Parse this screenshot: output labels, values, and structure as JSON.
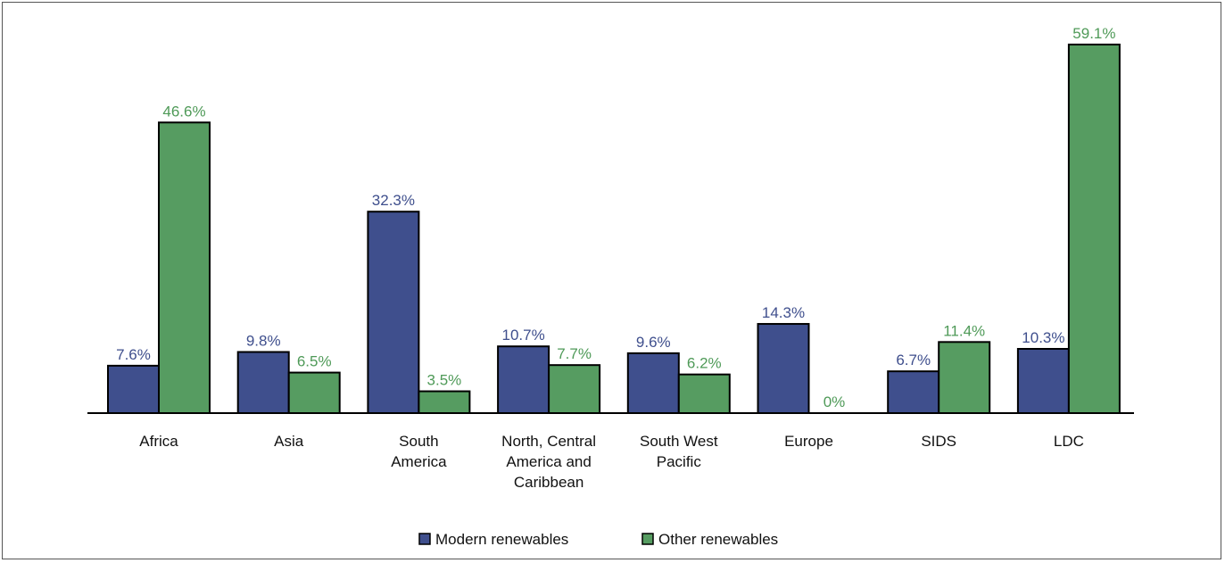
{
  "colors": {
    "modern": "#3f4f8d",
    "other": "#569c61",
    "modern_text": "#3f4f8d",
    "other_text": "#4f9a58",
    "axis": "#000000"
  },
  "chart_data": {
    "type": "bar",
    "title": "",
    "xlabel": "",
    "ylabel": "",
    "ylim": [
      0,
      62
    ],
    "grid": false,
    "legend_position": "bottom-center",
    "categories": [
      [
        "Africa"
      ],
      [
        "Asia"
      ],
      [
        "South",
        "America"
      ],
      [
        "North, Central",
        "America and",
        "Caribbean"
      ],
      [
        "South West",
        "Pacific"
      ],
      [
        "Europe"
      ],
      [
        "SIDS"
      ],
      [
        "LDC"
      ]
    ],
    "series": [
      {
        "name": "Modern renewables",
        "values": [
          7.6,
          9.8,
          32.3,
          10.7,
          9.6,
          14.3,
          6.7,
          10.3
        ],
        "labels": [
          "7.6%",
          "9.8%",
          "32.3%",
          "10.7%",
          "9.6%",
          "14.3%",
          "6.7%",
          "10.3%"
        ]
      },
      {
        "name": "Other renewables",
        "values": [
          46.6,
          6.5,
          3.5,
          7.7,
          6.2,
          0,
          11.4,
          59.1
        ],
        "labels": [
          "46.6%",
          "6.5%",
          "3.5%",
          "7.7%",
          "6.2%",
          "0%",
          "11.4%",
          "59.1%"
        ]
      }
    ]
  }
}
